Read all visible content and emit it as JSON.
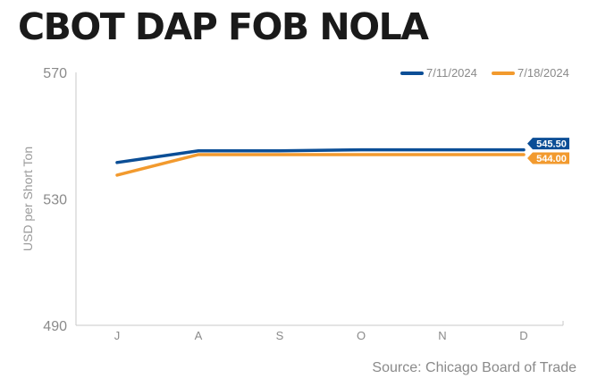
{
  "title": "CBOT DAP FOB NOLA",
  "source": "Source: Chicago Board of Trade",
  "chart_data": {
    "type": "line",
    "title": "CBOT DAP FOB NOLA",
    "xlabel": "",
    "ylabel": "USD per Short Ton",
    "categories": [
      "J",
      "A",
      "S",
      "O",
      "N",
      "D"
    ],
    "ylim": [
      490,
      570
    ],
    "yticks": [
      490,
      530,
      570
    ],
    "grid": false,
    "legend_position": "top-right",
    "series": [
      {
        "name": "7/11/2024",
        "color": "#0b4e96",
        "values": [
          541.5,
          545.2,
          545.2,
          545.5,
          545.5,
          545.5
        ],
        "end_label": "545.50"
      },
      {
        "name": "7/18/2024",
        "color": "#f29a2e",
        "values": [
          537.5,
          544.0,
          544.0,
          544.0,
          544.0,
          544.0
        ],
        "end_label": "544.00"
      }
    ]
  }
}
